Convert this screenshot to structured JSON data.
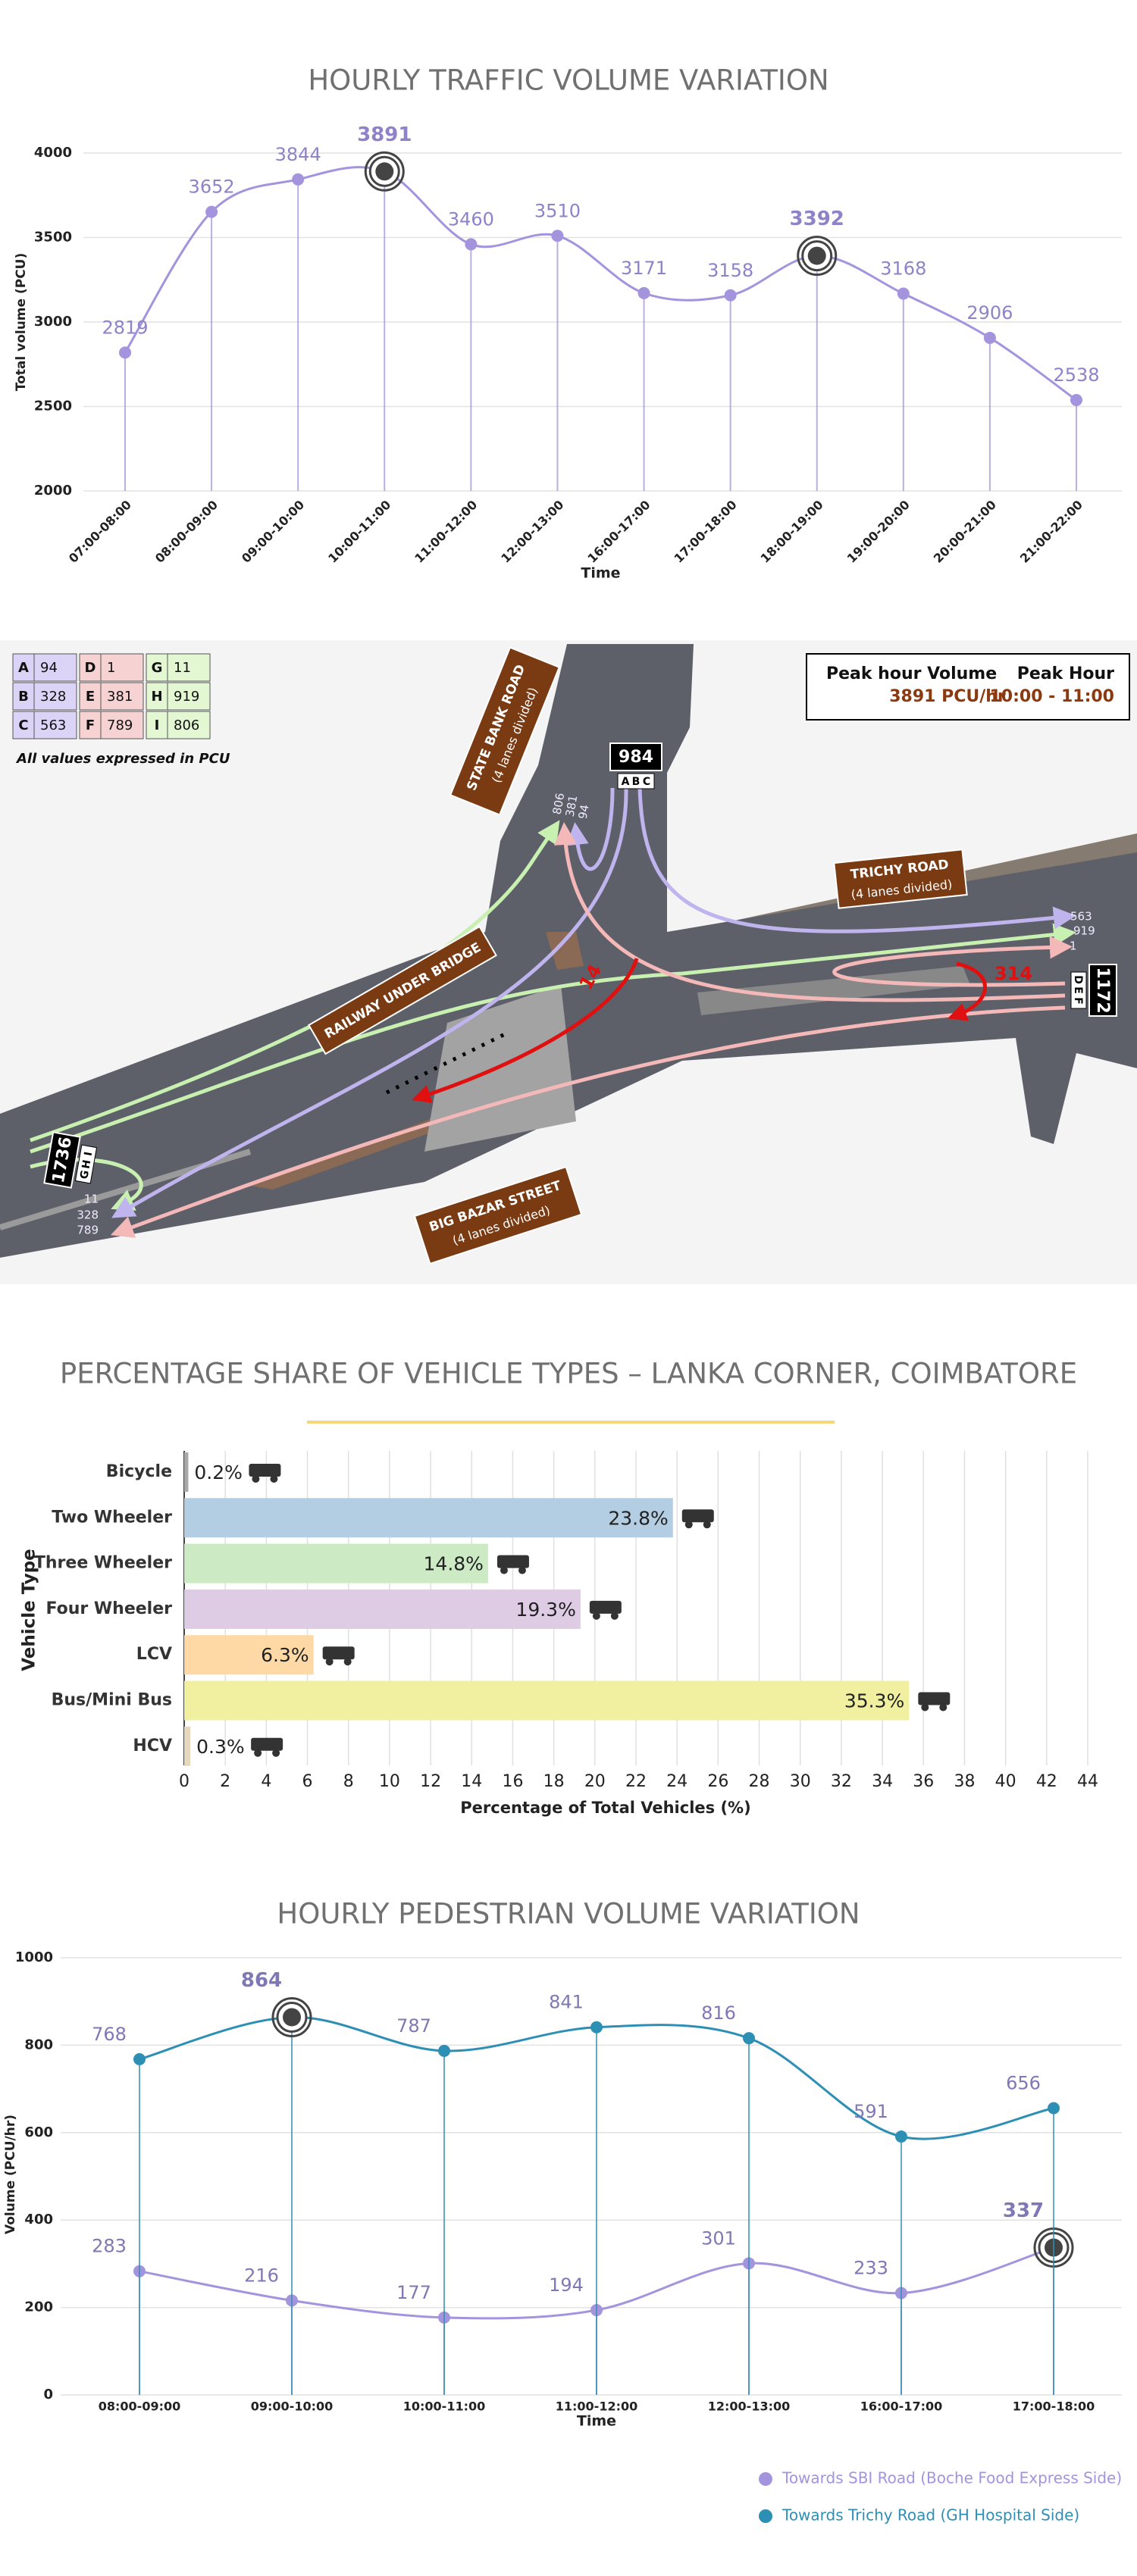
{
  "chart_data": [
    {
      "type": "line",
      "title": "HOURLY TRAFFIC VOLUME VARIATION",
      "x_label": "Time",
      "y_label": "Total volume (PCU)",
      "categories": [
        "07:00-08:00",
        "08:00-09:00",
        "09:00-10:00",
        "10:00-11:00",
        "11:00-12:00",
        "12:00-13:00",
        "16:00-17:00",
        "17:00-18:00",
        "18:00-19:00",
        "19:00-20:00",
        "20:00-21:00",
        "21:00-22:00"
      ],
      "values": [
        2819,
        3652,
        3844,
        3891,
        3460,
        3510,
        3171,
        3158,
        3392,
        3168,
        2906,
        2538
      ],
      "color": "#a394dd",
      "highlight": [
        "10:00-11:00",
        "18:00-19:00"
      ],
      "ylim": [
        2000,
        4000
      ],
      "yticks": [
        2000,
        2500,
        3000,
        3500,
        4000
      ],
      "grid": true
    },
    {
      "type": "barh",
      "title": "PERCENTAGE SHARE OF VEHICLE TYPES – LANKA CORNER, COIMBATORE",
      "x_label": "Percentage of Total Vehicles (%)",
      "y_label": "Vehicle Type",
      "categories": [
        "Bicycle",
        "Two Wheeler",
        "Three Wheeler",
        "Four Wheeler",
        "LCV",
        "Bus/Mini Bus",
        "HCV"
      ],
      "values": [
        0.2,
        23.8,
        14.8,
        19.3,
        6.3,
        35.3,
        0.3
      ],
      "value_labels": [
        "0.2%",
        "23.8%",
        "14.8%",
        "19.3%",
        "6.3%",
        "35.3%",
        "0.3%"
      ],
      "colors": [
        "#a8a8a8",
        "#b3cde3",
        "#ccebc5",
        "#decbe4",
        "#fed9a6",
        "#f0f0a0",
        "#e5d8bd"
      ],
      "xlim": [
        0,
        44
      ],
      "xticks": [
        0,
        2,
        4,
        6,
        8,
        10,
        12,
        14,
        16,
        18,
        20,
        22,
        24,
        26,
        28,
        30,
        32,
        34,
        36,
        38,
        40,
        42,
        44
      ],
      "grid": true
    },
    {
      "type": "line",
      "title": "HOURLY PEDESTRIAN VOLUME VARIATION",
      "x_label": "Time",
      "y_label": "Volume (PCU/hr)",
      "categories": [
        "08:00-09:00",
        "09:00-10:00",
        "10:00-11:00",
        "11:00-12:00",
        "12:00-13:00",
        "16:00-17:00",
        "17:00-18:00"
      ],
      "series": [
        {
          "name": "Towards SBI Road (Boche Food Express Side)",
          "color": "#a394dd",
          "values": [
            283,
            216,
            177,
            194,
            301,
            233,
            337
          ],
          "highlight": [
            "17:00-18:00"
          ]
        },
        {
          "name": "Towards Trichy Road (GH Hospital Side)",
          "color": "#2e8fb5",
          "values": [
            768,
            864,
            787,
            841,
            816,
            591,
            656
          ],
          "highlight": [
            "09:00-10:00"
          ]
        }
      ],
      "ylim": [
        0,
        1000
      ],
      "yticks": [
        0,
        200,
        400,
        600,
        800,
        1000
      ],
      "grid": true
    }
  ],
  "diagram": {
    "legend": [
      {
        "letter": "A",
        "value": 94
      },
      {
        "letter": "B",
        "value": 328
      },
      {
        "letter": "C",
        "value": 563
      },
      {
        "letter": "D",
        "value": 1
      },
      {
        "letter": "E",
        "value": 381
      },
      {
        "letter": "F",
        "value": 789
      },
      {
        "letter": "G",
        "value": 11
      },
      {
        "letter": "H",
        "value": 919
      },
      {
        "letter": "I",
        "value": 806
      }
    ],
    "note": "All values expressed in PCU",
    "peak": {
      "volume_label": "Peak hour Volume",
      "volume": "3891 PCU/hr",
      "hour_label": "Peak Hour",
      "hour": "10:00 - 11:00"
    },
    "roads": [
      {
        "name": "STATE BANK ROAD",
        "lanes": "(4 lanes divided)"
      },
      {
        "name": "TRICHY ROAD",
        "lanes": "(4 lanes divided)"
      },
      {
        "name": "RAILWAY UNDER BRIDGE"
      },
      {
        "name": "BIG BAZAR STREET",
        "lanes": "(4 lanes divided)"
      }
    ],
    "approaches": [
      {
        "total": 984,
        "movements": [
          "A",
          "B",
          "C"
        ]
      },
      {
        "total": 1172,
        "movements": [
          "D",
          "E",
          "F"
        ]
      },
      {
        "total": 1736,
        "movements": [
          "G",
          "H",
          "I"
        ]
      }
    ],
    "arrivals": {
      "north": [
        806,
        381,
        94
      ],
      "east": [
        563,
        919,
        1
      ],
      "west": [
        11,
        328,
        789
      ]
    },
    "highlighted_flows": [
      14,
      314
    ]
  }
}
